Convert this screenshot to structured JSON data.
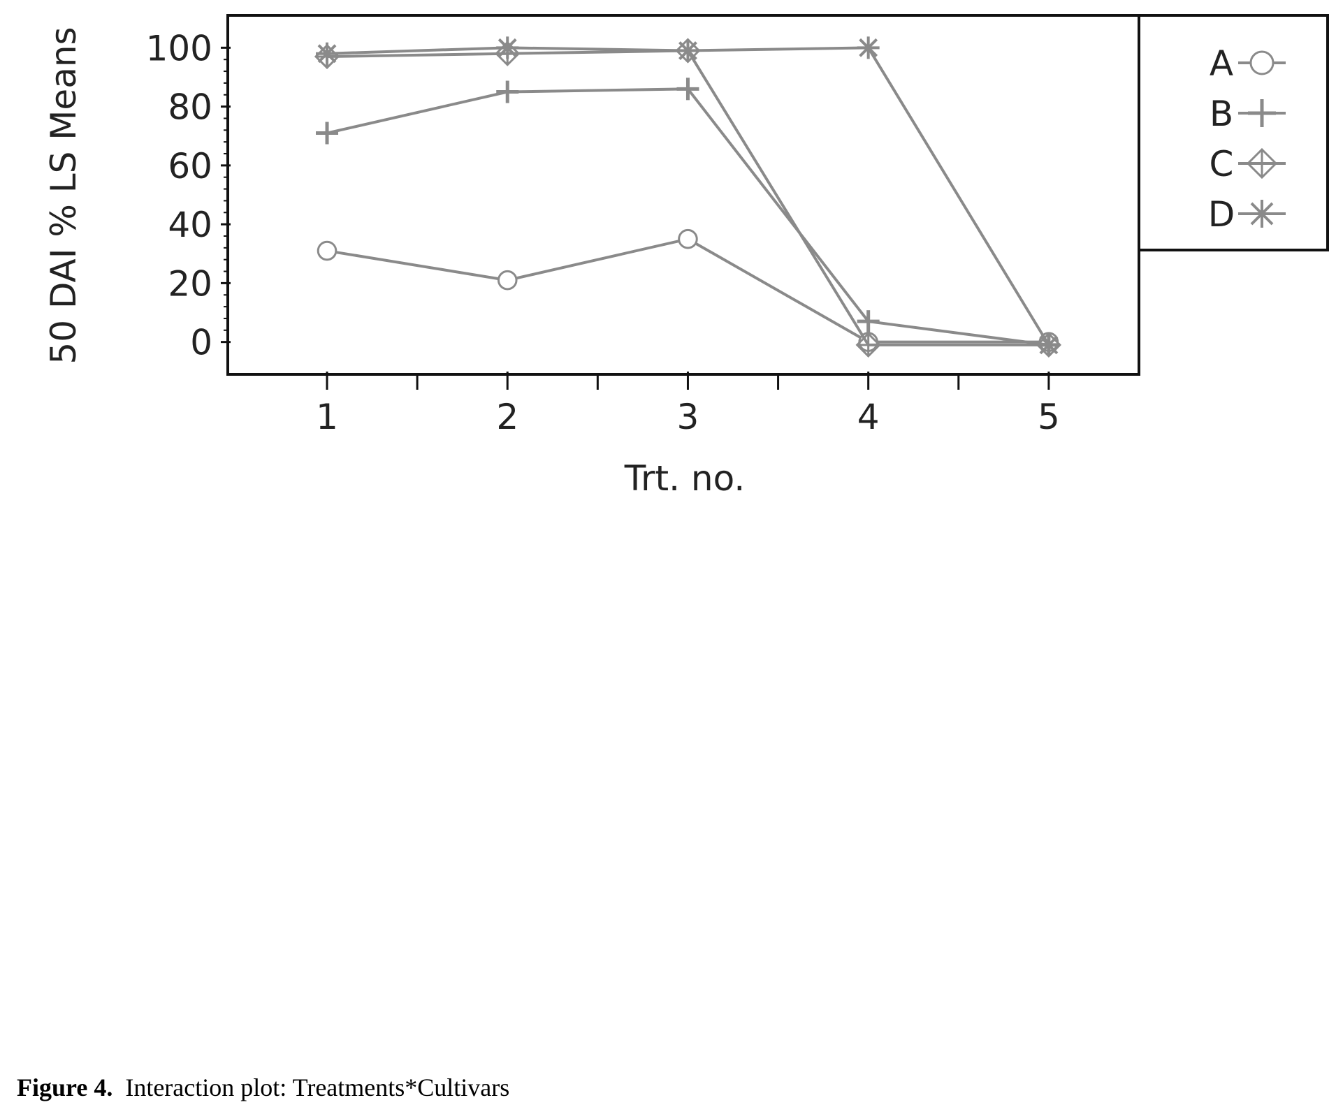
{
  "chart_data": {
    "type": "line",
    "title": "",
    "xlabel": "Trt. no.",
    "ylabel": "50 DAI % LS Means",
    "x": [
      1,
      2,
      3,
      4,
      5
    ],
    "x_ticks": [
      1,
      2,
      3,
      4,
      5
    ],
    "xlim": [
      0.45,
      5.5
    ],
    "y_ticks": [
      0,
      20,
      40,
      60,
      80,
      100
    ],
    "ylim": [
      -11,
      111
    ],
    "grid": false,
    "legend_position": "right, outside plot area, top",
    "line_color": "#8a8a8a",
    "series": [
      {
        "name": "A",
        "marker": "open-circle",
        "values": [
          31,
          21,
          35,
          0,
          0
        ]
      },
      {
        "name": "B",
        "marker": "plus",
        "values": [
          71,
          85,
          86,
          7,
          -1
        ]
      },
      {
        "name": "C",
        "marker": "diamond-cross",
        "values": [
          97,
          98,
          99,
          -1,
          -1
        ]
      },
      {
        "name": "D",
        "marker": "asterisk",
        "values": [
          98,
          100,
          99,
          100,
          -1
        ]
      }
    ]
  },
  "caption": {
    "label": "Figure 4.",
    "text": "Interaction plot: Treatments*Cultivars"
  }
}
